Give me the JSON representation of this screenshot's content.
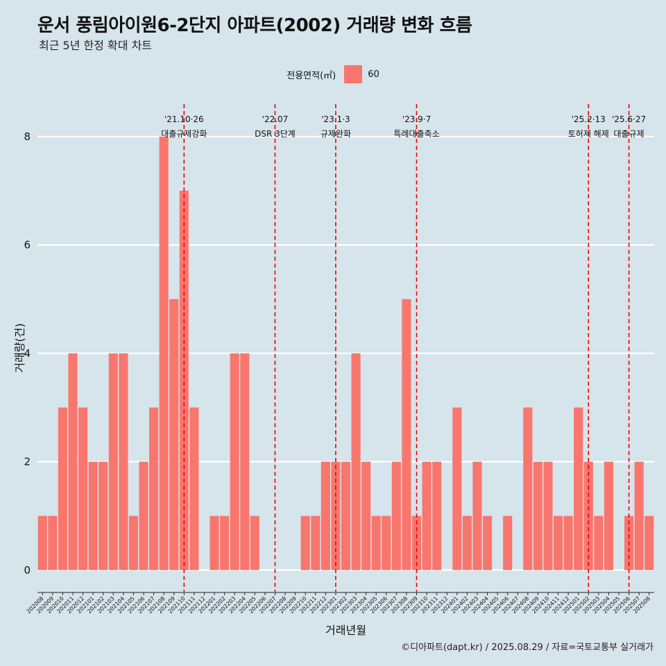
{
  "chart_data": {
    "type": "bar",
    "title": "운서 풍림아이원6-2단지 아파트(2002) 거래량 변화 흐름",
    "subtitle": "최근 5년 한정 확대 차트",
    "xlabel": "거래년월",
    "ylabel": "거래량(건)",
    "legend_title": "전용면적(㎡)",
    "legend_position": "top",
    "caption": "©디아파트(dapt.kr) / 2025.08.29 / 자료=국토교통부 실거래가",
    "ylim": [
      -0.4,
      8.6
    ],
    "yticks": [
      0,
      2,
      4,
      6,
      8
    ],
    "grid": true,
    "categories": [
      "202008",
      "202009",
      "202010",
      "202011",
      "202012",
      "202101",
      "202102",
      "202103",
      "202104",
      "202105",
      "202106",
      "202107",
      "202108",
      "202109",
      "202110",
      "202111",
      "202112",
      "202201",
      "202202",
      "202203",
      "202204",
      "202205",
      "202206",
      "202207",
      "202208",
      "202209",
      "202210",
      "202211",
      "202212",
      "202301",
      "202302",
      "202303",
      "202304",
      "202305",
      "202306",
      "202307",
      "202308",
      "202309",
      "202310",
      "202311",
      "202312",
      "202401",
      "202402",
      "202403",
      "202404",
      "202405",
      "202406",
      "202407",
      "202408",
      "202409",
      "202410",
      "202411",
      "202412",
      "202501",
      "202502",
      "202503",
      "202504",
      "202505",
      "202506",
      "202507",
      "202508"
    ],
    "series": [
      {
        "name": "60",
        "color": "#f8766d",
        "values": [
          1,
          1,
          3,
          4,
          3,
          2,
          2,
          4,
          4,
          1,
          2,
          3,
          8,
          5,
          7,
          3,
          0,
          1,
          1,
          4,
          4,
          1,
          0,
          0,
          0,
          0,
          1,
          1,
          2,
          2,
          2,
          4,
          2,
          1,
          1,
          2,
          5,
          1,
          2,
          2,
          0,
          3,
          1,
          2,
          1,
          0,
          1,
          0,
          3,
          2,
          2,
          1,
          1,
          3,
          2,
          1,
          2,
          0,
          1,
          2,
          1
        ]
      }
    ],
    "events": [
      {
        "x": "202110",
        "date": "'21.10·26",
        "label": "대출규제강화"
      },
      {
        "x": "202207",
        "date": "'22.07",
        "label": "DSR 3단계"
      },
      {
        "x": "202301",
        "date": "'23.1·3",
        "label": "규제완화"
      },
      {
        "x": "202309",
        "date": "'23.9·7",
        "label": "특례대출축소"
      },
      {
        "x": "202502",
        "date": "'25.2·13",
        "label": "토허제 해제"
      },
      {
        "x": "202506",
        "date": "'25.6·27",
        "label": "대출규제"
      }
    ]
  }
}
